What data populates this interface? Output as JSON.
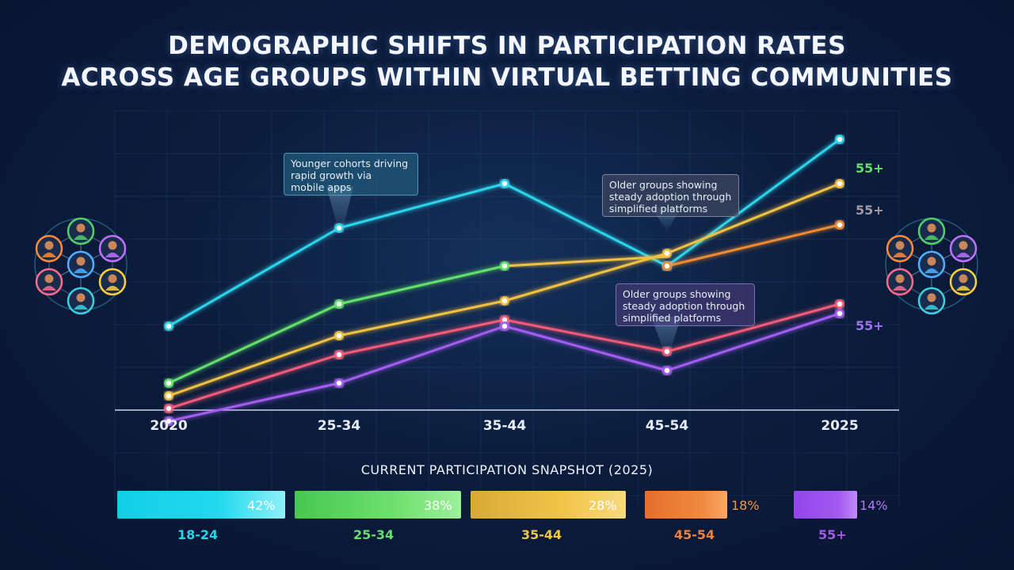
{
  "title_line1": "DEMOGRAPHIC SHIFTS IN PARTICIPATION RATES",
  "title_line2": "ACROSS AGE GROUPS WITHIN VIRTUAL BETTING COMMUNITIES",
  "chart_data": [
    {
      "type": "line",
      "categories": [
        "2020",
        "25-34",
        "35-44",
        "45-54",
        "2025"
      ],
      "series": [
        {
          "color": "#2ad4ec",
          "values": [
            27,
            58,
            72,
            46,
            86
          ]
        },
        {
          "color": "#62e06a",
          "values": [
            9,
            34,
            46,
            null,
            null
          ]
        },
        {
          "color": "#f2c040",
          "values": [
            5,
            24,
            35,
            50,
            72
          ],
          "end_label": "55+"
        },
        {
          "color": "#f08a30",
          "values": [
            null,
            null,
            null,
            46,
            59
          ],
          "end_label": "55+"
        },
        {
          "color": "#f35a78",
          "values": [
            1,
            18,
            29,
            19,
            34
          ],
          "end_label": "55+"
        },
        {
          "color": "#a45cf2",
          "values": [
            -3,
            9,
            27,
            13,
            31
          ]
        }
      ],
      "connector": {
        "from": [
          2,
          46
        ],
        "to": [
          3,
          49
        ],
        "color": "#f2c040"
      },
      "end_label_colors": [
        "#62e06a",
        "#a09aa6",
        "#a070f0"
      ],
      "annotations": [
        "Younger cohorts driving\nrapid growth via\nmobile apps",
        "Older groups showing\nsteady adoption through\nsimplified platforms",
        "Older groups showing\nsteady adoption through\nsimplified platforms"
      ],
      "grid": true
    },
    {
      "type": "bar",
      "title": "CURRENT PARTICIPATION SNAPSHOT (2025)",
      "categories": [
        "18-24",
        "25-34",
        "35-44",
        "45-54",
        "55+"
      ],
      "values": [
        42,
        38,
        28,
        18,
        14
      ],
      "value_labels": [
        "42%",
        "38%",
        "28%",
        "18%",
        "14%"
      ],
      "colors": [
        "#18d6e8",
        "#5fdc62",
        "#f2c548",
        "#f0803a",
        "#a458f0"
      ]
    }
  ]
}
